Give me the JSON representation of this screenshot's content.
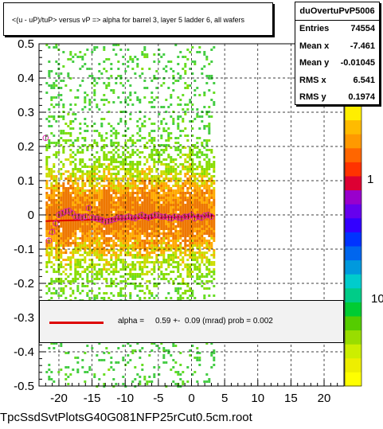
{
  "title": "<(u - uP)/tuP> versus   vP => alpha for barrel 3, layer 5 ladder 6, all wafers",
  "stats": {
    "name": "duOvertuPvP5006",
    "rows": [
      {
        "label": "Entries",
        "value": "74554"
      },
      {
        "label": "Mean x",
        "value": "-7.461"
      },
      {
        "label": "Mean y",
        "value": "-0.01045"
      },
      {
        "label": "RMS x",
        "value": "6.541"
      },
      {
        "label": "RMS y",
        "value": "0.1974"
      }
    ]
  },
  "fit": {
    "text": "alpha =     0.59 +-  0.09 (mrad) prob = 0.002",
    "color": "#dd0000"
  },
  "file_label": "TpcSsdSvtPlotsG40G081NFP25rCut0.5cm.root",
  "chart_data": {
    "type": "heatmap",
    "title": "<(u - uP)/tuP> versus   vP => alpha for barrel 3, layer 5 ladder 6, all wafers",
    "xlabel": "",
    "ylabel": "",
    "xlim": [
      -23,
      23
    ],
    "ylim": [
      -0.5,
      0.5
    ],
    "x_ticks": [
      "-20",
      "-15",
      "-10",
      "-5",
      "0",
      "5",
      "10",
      "15",
      "20"
    ],
    "x_tick_values": [
      -20,
      -15,
      -10,
      -5,
      0,
      5,
      10,
      15,
      20
    ],
    "y_ticks": [
      "0.5",
      "0.4",
      "0.3",
      "0.2",
      "0.1",
      "0",
      "-0.1",
      "-0.2",
      "-0.3",
      "-0.4",
      "-0.5"
    ],
    "y_tick_values": [
      0.5,
      0.4,
      0.3,
      0.2,
      0.1,
      0,
      -0.1,
      -0.2,
      -0.3,
      -0.4,
      -0.5
    ],
    "heatmap_x_range": [
      -22,
      3.5
    ],
    "heatmap_y_range": [
      -0.5,
      0.5
    ],
    "colorbar_labels": [
      "1",
      "10"
    ],
    "colorbar_colors": [
      "#ffff00",
      "#eeee00",
      "#ccee00",
      "#99dd00",
      "#55cc00",
      "#00cc33",
      "#00cc88",
      "#00cccc",
      "#0099dd",
      "#0066ee",
      "#0033ff",
      "#3300ff",
      "#6600ee",
      "#9900cc",
      "#dd0033",
      "#ff3300",
      "#ff6600",
      "#ff9900",
      "#ffbb00",
      "#ffee00"
    ],
    "grid": true,
    "profile_points": {
      "x": [
        -22.0,
        -21.5,
        -21.0,
        -20.5,
        -20.0,
        -19.5,
        -19.0,
        -18.5,
        -18.0,
        -17.5,
        -17.0,
        -16.5,
        -16.0,
        -15.5,
        -15.0,
        -14.5,
        -14.0,
        -13.5,
        -13.0,
        -12.5,
        -12.0,
        -11.5,
        -11.0,
        -10.5,
        -10.0,
        -9.5,
        -9.0,
        -8.5,
        -8.0,
        -7.5,
        -7.0,
        -6.5,
        -6.0,
        -5.5,
        -5.0,
        -4.5,
        -4.0,
        -3.5,
        -3.0,
        -2.5,
        -2.0,
        -1.5,
        -1.0,
        -0.5,
        0.0,
        0.5,
        1.0,
        1.5,
        2.0,
        2.5,
        3.0
      ],
      "y": [
        0.225,
        -0.075,
        -0.05,
        -0.025,
        0.0,
        0.005,
        0.01,
        0.012,
        0.005,
        -0.005,
        -0.005,
        -0.008,
        -0.005,
        0.02,
        -0.008,
        -0.01,
        -0.012,
        -0.015,
        -0.02,
        -0.018,
        -0.015,
        -0.012,
        -0.008,
        -0.01,
        -0.008,
        -0.005,
        -0.008,
        -0.01,
        -0.005,
        0.0,
        -0.005,
        -0.008,
        -0.005,
        0.0,
        -0.002,
        -0.005,
        -0.005,
        -0.008,
        -0.01,
        -0.005,
        -0.008,
        -0.01,
        -0.005,
        -0.005,
        0.0,
        -0.01,
        -0.005,
        -0.008,
        -0.002,
        0.0,
        -0.005
      ]
    },
    "fit_line": {
      "x": [
        -22,
        3.5
      ],
      "y": [
        -0.018,
        -0.003
      ]
    }
  }
}
